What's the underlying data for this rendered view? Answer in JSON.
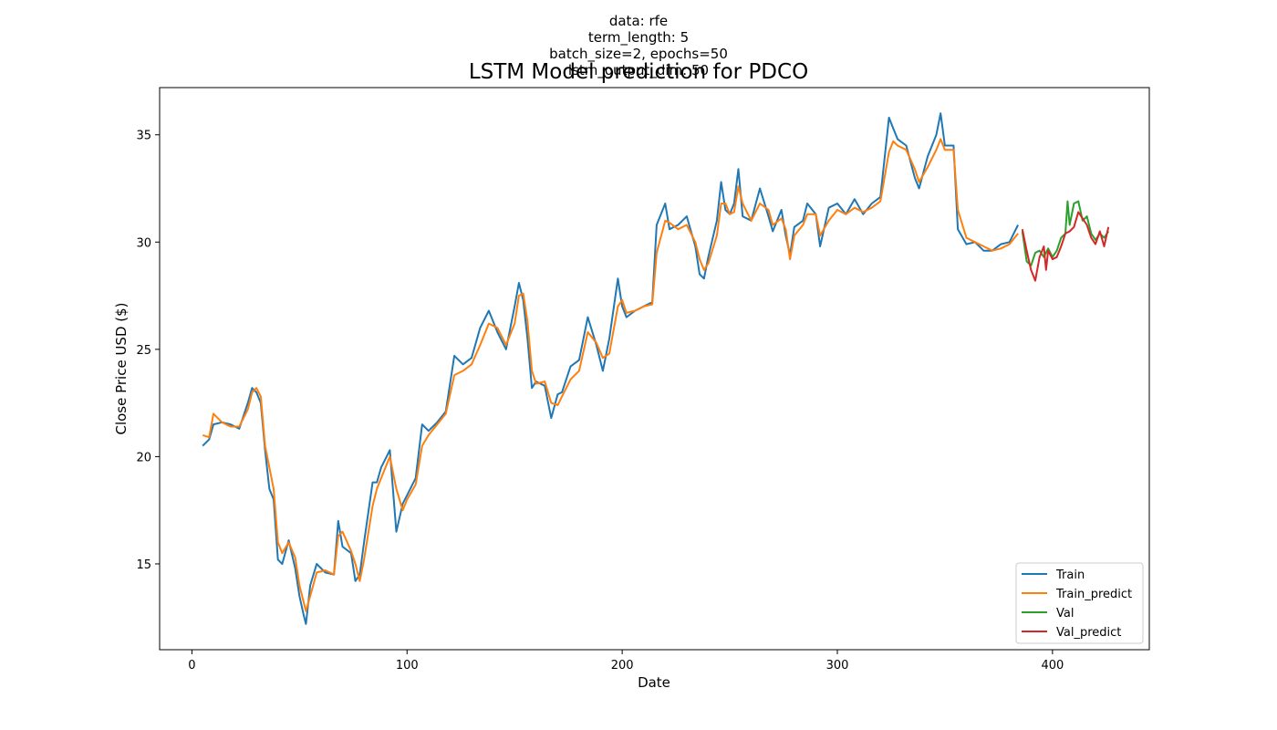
{
  "header": {
    "lines": [
      "data: rfe",
      "term_length: 5",
      "batch_size=2, epochs=50",
      "lstm_output_dim: 50"
    ]
  },
  "chart_data": {
    "type": "line",
    "title": "LSTM Model prediction for PDCO",
    "xlabel": "Date",
    "ylabel": "Close Price USD ($)",
    "xlim": [
      -15,
      445
    ],
    "ylim": [
      11.0,
      37.2
    ],
    "xticks": [
      0,
      100,
      200,
      300,
      400
    ],
    "yticks": [
      15,
      20,
      25,
      30,
      35
    ],
    "grid": false,
    "legend_position": "lower right",
    "series": [
      {
        "name": "Train",
        "color": "#1f77b4",
        "points": [
          [
            5,
            20.5
          ],
          [
            8,
            20.8
          ],
          [
            10,
            21.5
          ],
          [
            14,
            21.6
          ],
          [
            18,
            21.5
          ],
          [
            22,
            21.3
          ],
          [
            26,
            22.5
          ],
          [
            28,
            23.2
          ],
          [
            30,
            23.0
          ],
          [
            32,
            22.5
          ],
          [
            34,
            20.3
          ],
          [
            36,
            18.5
          ],
          [
            38,
            18.0
          ],
          [
            40,
            15.2
          ],
          [
            42,
            15.0
          ],
          [
            45,
            16.1
          ],
          [
            48,
            14.8
          ],
          [
            50,
            13.5
          ],
          [
            52,
            12.6
          ],
          [
            53,
            12.2
          ],
          [
            55,
            14.0
          ],
          [
            58,
            15.0
          ],
          [
            62,
            14.6
          ],
          [
            66,
            14.5
          ],
          [
            68,
            17.0
          ],
          [
            70,
            15.8
          ],
          [
            74,
            15.5
          ],
          [
            76,
            14.2
          ],
          [
            78,
            14.5
          ],
          [
            80,
            16.0
          ],
          [
            84,
            18.8
          ],
          [
            86,
            18.8
          ],
          [
            88,
            19.5
          ],
          [
            92,
            20.3
          ],
          [
            95,
            16.5
          ],
          [
            98,
            17.8
          ],
          [
            100,
            18.2
          ],
          [
            104,
            19.0
          ],
          [
            107,
            21.5
          ],
          [
            110,
            21.2
          ],
          [
            114,
            21.6
          ],
          [
            118,
            22.1
          ],
          [
            122,
            24.7
          ],
          [
            126,
            24.3
          ],
          [
            130,
            24.6
          ],
          [
            134,
            26.0
          ],
          [
            138,
            26.8
          ],
          [
            142,
            25.8
          ],
          [
            146,
            25.0
          ],
          [
            150,
            27.0
          ],
          [
            152,
            28.1
          ],
          [
            154,
            27.3
          ],
          [
            156,
            25.5
          ],
          [
            158,
            23.2
          ],
          [
            160,
            23.5
          ],
          [
            164,
            23.3
          ],
          [
            167,
            21.8
          ],
          [
            170,
            22.9
          ],
          [
            172,
            23.0
          ],
          [
            176,
            24.2
          ],
          [
            180,
            24.5
          ],
          [
            184,
            26.5
          ],
          [
            188,
            25.2
          ],
          [
            191,
            24.0
          ],
          [
            194,
            25.5
          ],
          [
            198,
            28.3
          ],
          [
            200,
            27.0
          ],
          [
            202,
            26.5
          ],
          [
            206,
            26.8
          ],
          [
            210,
            27.0
          ],
          [
            214,
            27.2
          ],
          [
            216,
            30.8
          ],
          [
            220,
            31.8
          ],
          [
            222,
            30.6
          ],
          [
            226,
            30.8
          ],
          [
            230,
            31.2
          ],
          [
            234,
            29.8
          ],
          [
            236,
            28.5
          ],
          [
            238,
            28.3
          ],
          [
            240,
            29.3
          ],
          [
            244,
            31.0
          ],
          [
            246,
            32.8
          ],
          [
            248,
            31.5
          ],
          [
            250,
            31.3
          ],
          [
            252,
            31.8
          ],
          [
            254,
            33.4
          ],
          [
            256,
            31.2
          ],
          [
            260,
            31.0
          ],
          [
            264,
            32.5
          ],
          [
            268,
            31.2
          ],
          [
            270,
            30.5
          ],
          [
            274,
            31.5
          ],
          [
            276,
            30.3
          ],
          [
            278,
            29.4
          ],
          [
            280,
            30.7
          ],
          [
            284,
            31.0
          ],
          [
            286,
            31.8
          ],
          [
            290,
            31.3
          ],
          [
            292,
            29.8
          ],
          [
            296,
            31.6
          ],
          [
            300,
            31.8
          ],
          [
            304,
            31.3
          ],
          [
            308,
            32.0
          ],
          [
            312,
            31.3
          ],
          [
            316,
            31.8
          ],
          [
            320,
            32.1
          ],
          [
            324,
            35.8
          ],
          [
            326,
            35.3
          ],
          [
            328,
            34.8
          ],
          [
            332,
            34.5
          ],
          [
            336,
            33.0
          ],
          [
            338,
            32.5
          ],
          [
            342,
            34.0
          ],
          [
            346,
            35.0
          ],
          [
            348,
            36.0
          ],
          [
            350,
            34.5
          ],
          [
            354,
            34.5
          ],
          [
            356,
            30.6
          ],
          [
            360,
            29.9
          ],
          [
            364,
            30.0
          ],
          [
            368,
            29.6
          ],
          [
            372,
            29.6
          ],
          [
            376,
            29.9
          ],
          [
            380,
            30.0
          ],
          [
            384,
            30.8
          ]
        ]
      },
      {
        "name": "Train_predict",
        "color": "#ff7f0e",
        "points": [
          [
            5,
            21.0
          ],
          [
            8,
            20.9
          ],
          [
            10,
            22.0
          ],
          [
            14,
            21.6
          ],
          [
            18,
            21.4
          ],
          [
            22,
            21.4
          ],
          [
            26,
            22.2
          ],
          [
            28,
            23.0
          ],
          [
            30,
            23.2
          ],
          [
            32,
            22.8
          ],
          [
            34,
            20.5
          ],
          [
            36,
            19.5
          ],
          [
            38,
            18.5
          ],
          [
            40,
            16.0
          ],
          [
            42,
            15.5
          ],
          [
            45,
            16.0
          ],
          [
            48,
            15.3
          ],
          [
            50,
            14.0
          ],
          [
            52,
            13.2
          ],
          [
            53,
            12.8
          ],
          [
            55,
            13.5
          ],
          [
            58,
            14.6
          ],
          [
            62,
            14.7
          ],
          [
            66,
            14.5
          ],
          [
            68,
            16.3
          ],
          [
            70,
            16.5
          ],
          [
            74,
            15.6
          ],
          [
            76,
            15.0
          ],
          [
            78,
            14.2
          ],
          [
            80,
            15.2
          ],
          [
            84,
            17.7
          ],
          [
            86,
            18.5
          ],
          [
            88,
            19.0
          ],
          [
            92,
            20.0
          ],
          [
            95,
            18.5
          ],
          [
            98,
            17.5
          ],
          [
            100,
            18.0
          ],
          [
            104,
            18.7
          ],
          [
            107,
            20.5
          ],
          [
            110,
            21.0
          ],
          [
            114,
            21.5
          ],
          [
            118,
            22.0
          ],
          [
            122,
            23.8
          ],
          [
            126,
            24.0
          ],
          [
            130,
            24.3
          ],
          [
            134,
            25.2
          ],
          [
            138,
            26.2
          ],
          [
            142,
            26.0
          ],
          [
            146,
            25.2
          ],
          [
            150,
            26.2
          ],
          [
            152,
            27.5
          ],
          [
            154,
            27.6
          ],
          [
            156,
            26.3
          ],
          [
            158,
            24.0
          ],
          [
            160,
            23.4
          ],
          [
            164,
            23.5
          ],
          [
            167,
            22.5
          ],
          [
            170,
            22.4
          ],
          [
            172,
            22.8
          ],
          [
            176,
            23.6
          ],
          [
            180,
            24.0
          ],
          [
            184,
            25.8
          ],
          [
            188,
            25.3
          ],
          [
            191,
            24.6
          ],
          [
            194,
            24.8
          ],
          [
            198,
            27.0
          ],
          [
            200,
            27.3
          ],
          [
            202,
            26.7
          ],
          [
            206,
            26.8
          ],
          [
            210,
            27.0
          ],
          [
            214,
            27.1
          ],
          [
            216,
            29.5
          ],
          [
            220,
            31.0
          ],
          [
            222,
            30.9
          ],
          [
            226,
            30.6
          ],
          [
            230,
            30.8
          ],
          [
            234,
            30.0
          ],
          [
            236,
            29.2
          ],
          [
            238,
            28.7
          ],
          [
            240,
            29.0
          ],
          [
            244,
            30.3
          ],
          [
            246,
            31.8
          ],
          [
            248,
            31.8
          ],
          [
            250,
            31.3
          ],
          [
            252,
            31.4
          ],
          [
            254,
            32.6
          ],
          [
            256,
            31.8
          ],
          [
            260,
            31.0
          ],
          [
            264,
            31.8
          ],
          [
            268,
            31.5
          ],
          [
            270,
            30.8
          ],
          [
            274,
            31.1
          ],
          [
            276,
            30.6
          ],
          [
            278,
            29.2
          ],
          [
            280,
            30.3
          ],
          [
            284,
            30.8
          ],
          [
            286,
            31.3
          ],
          [
            290,
            31.3
          ],
          [
            292,
            30.3
          ],
          [
            296,
            31.0
          ],
          [
            300,
            31.5
          ],
          [
            304,
            31.3
          ],
          [
            308,
            31.6
          ],
          [
            312,
            31.4
          ],
          [
            316,
            31.6
          ],
          [
            320,
            31.9
          ],
          [
            324,
            34.2
          ],
          [
            326,
            34.7
          ],
          [
            328,
            34.5
          ],
          [
            332,
            34.3
          ],
          [
            336,
            33.4
          ],
          [
            338,
            32.8
          ],
          [
            342,
            33.5
          ],
          [
            346,
            34.3
          ],
          [
            348,
            34.8
          ],
          [
            350,
            34.3
          ],
          [
            354,
            34.3
          ],
          [
            356,
            31.5
          ],
          [
            360,
            30.2
          ],
          [
            364,
            30.0
          ],
          [
            368,
            29.8
          ],
          [
            372,
            29.6
          ],
          [
            376,
            29.7
          ],
          [
            380,
            29.9
          ],
          [
            384,
            30.4
          ]
        ]
      },
      {
        "name": "Val",
        "color": "#2ca02c",
        "points": [
          [
            386,
            30.5
          ],
          [
            388,
            29.1
          ],
          [
            390,
            28.9
          ],
          [
            392,
            29.5
          ],
          [
            394,
            29.6
          ],
          [
            396,
            29.3
          ],
          [
            398,
            29.7
          ],
          [
            400,
            29.3
          ],
          [
            402,
            29.6
          ],
          [
            404,
            30.2
          ],
          [
            406,
            30.4
          ],
          [
            407,
            31.9
          ],
          [
            408,
            30.8
          ],
          [
            410,
            31.8
          ],
          [
            412,
            31.9
          ],
          [
            414,
            31.0
          ],
          [
            416,
            31.2
          ],
          [
            418,
            30.4
          ],
          [
            420,
            30.1
          ],
          [
            422,
            30.4
          ],
          [
            424,
            30.2
          ],
          [
            426,
            30.5
          ]
        ]
      },
      {
        "name": "Val_predict",
        "color": "#d62728",
        "points": [
          [
            386,
            30.6
          ],
          [
            388,
            29.6
          ],
          [
            390,
            28.7
          ],
          [
            392,
            28.2
          ],
          [
            394,
            29.3
          ],
          [
            396,
            29.8
          ],
          [
            397,
            28.7
          ],
          [
            398,
            29.6
          ],
          [
            400,
            29.2
          ],
          [
            402,
            29.3
          ],
          [
            404,
            29.8
          ],
          [
            406,
            30.4
          ],
          [
            408,
            30.5
          ],
          [
            410,
            30.7
          ],
          [
            412,
            31.4
          ],
          [
            414,
            31.1
          ],
          [
            416,
            30.8
          ],
          [
            418,
            30.2
          ],
          [
            420,
            29.9
          ],
          [
            422,
            30.5
          ],
          [
            424,
            29.8
          ],
          [
            426,
            30.7
          ]
        ]
      }
    ]
  }
}
